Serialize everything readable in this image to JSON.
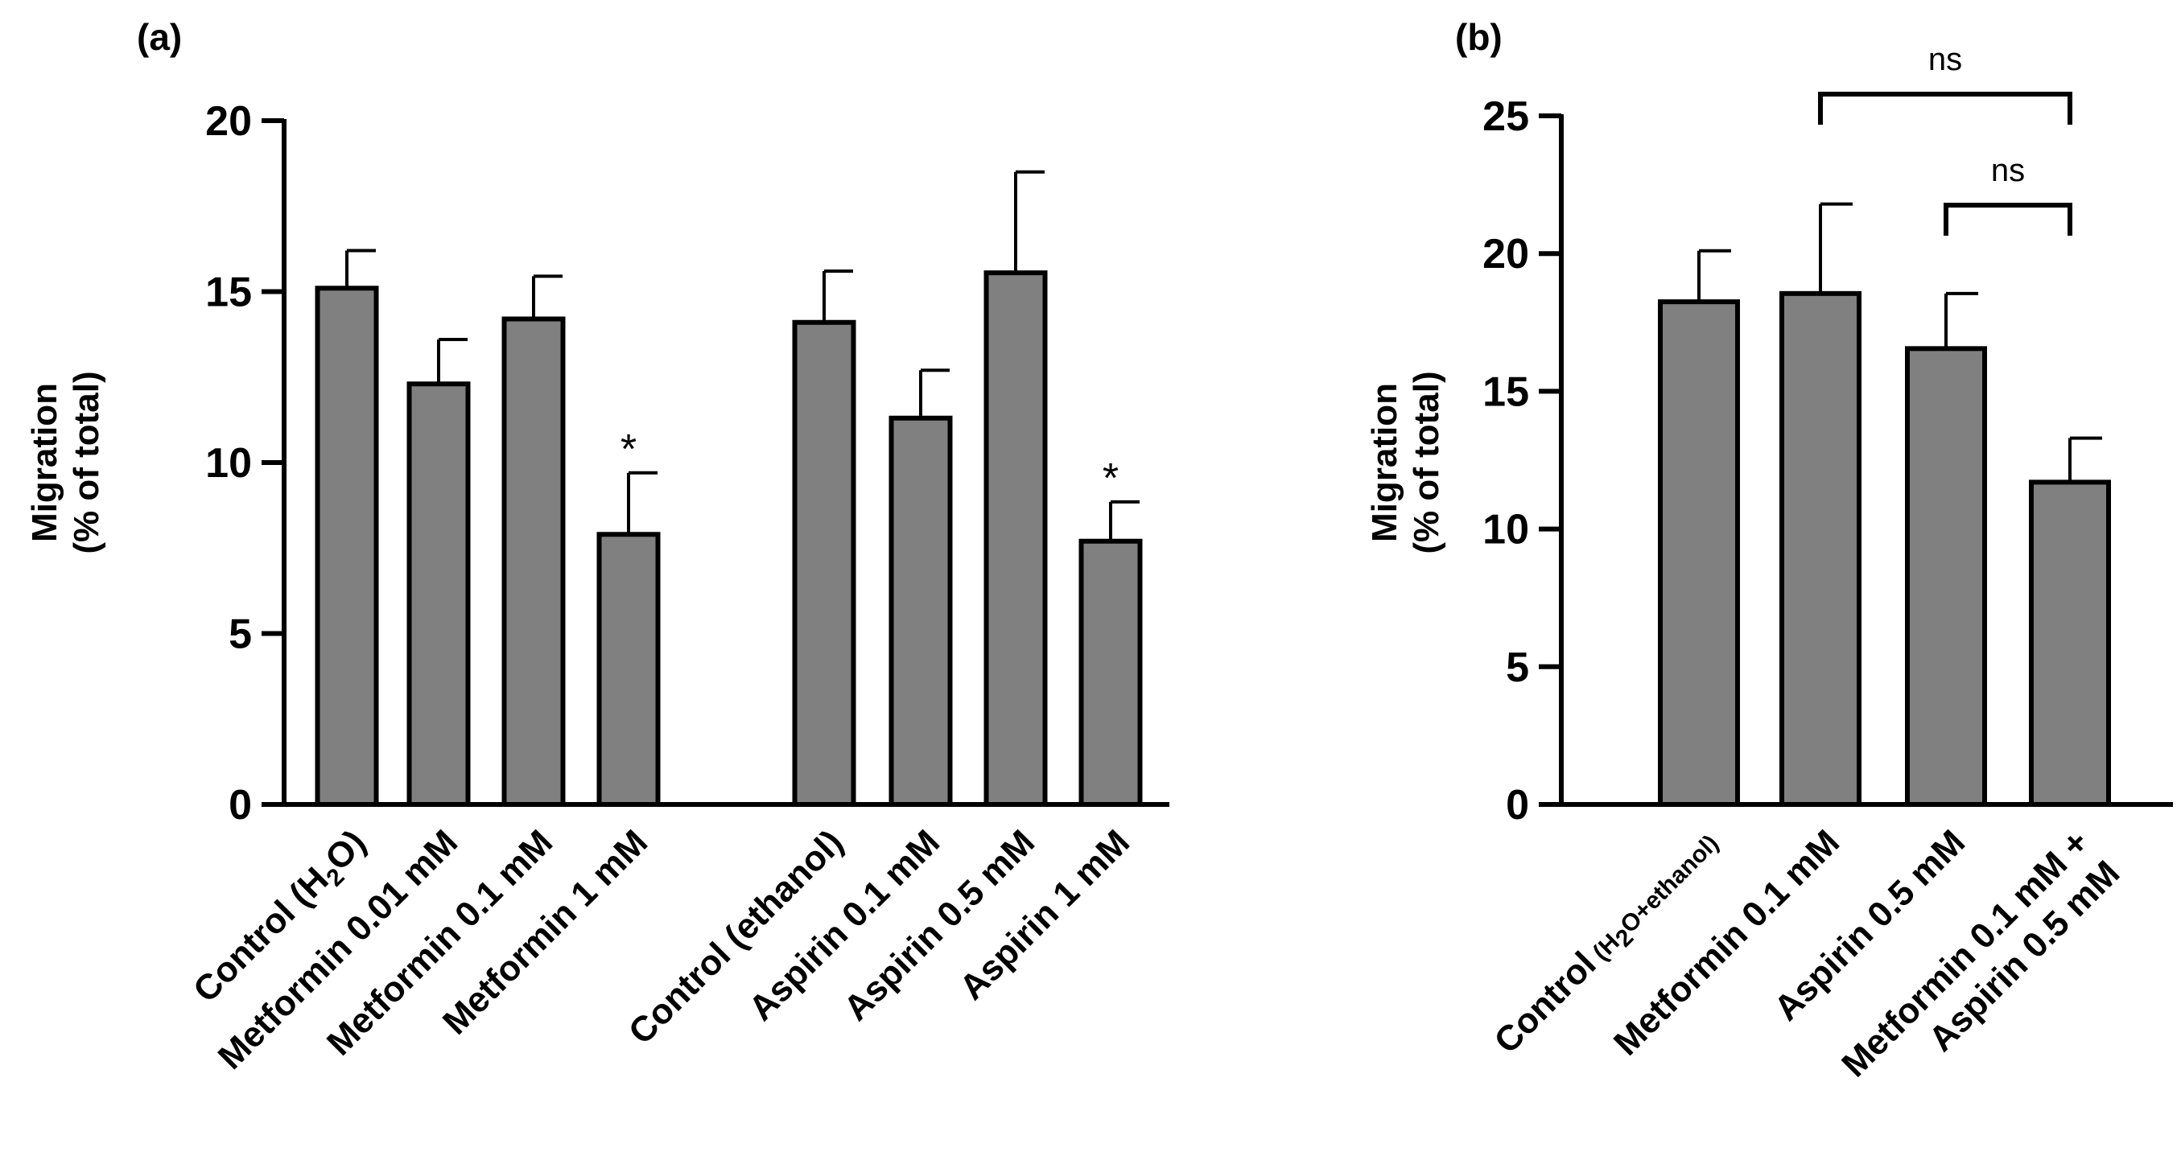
{
  "chart_data": [
    {
      "panel": "(a)",
      "type": "bar",
      "ylabel_line1": "Migration",
      "ylabel_line2": "(% of total)",
      "ylim": [
        0,
        20
      ],
      "yticks": [
        "0",
        "5",
        "10",
        "15",
        "20"
      ],
      "grid": false,
      "bar_color": "#808080",
      "categories": [
        {
          "label": "Control (H",
          "sub": "2",
          "suffix": "O)",
          "value": 15.1,
          "error": 1.1,
          "annotation": ""
        },
        {
          "label": "Metformin 0.01 mM",
          "value": 12.3,
          "error": 1.3,
          "annotation": ""
        },
        {
          "label": "Metformin 0.1 mM",
          "value": 14.2,
          "error": 1.25,
          "annotation": ""
        },
        {
          "label": "Metformin 1 mM",
          "value": 7.9,
          "error": 1.8,
          "annotation": "*"
        },
        {
          "label": "Control (ethanol)",
          "value": 14.1,
          "error": 1.5,
          "annotation": ""
        },
        {
          "label": "Aspirin 0.1 mM",
          "value": 11.3,
          "error": 1.4,
          "annotation": ""
        },
        {
          "label": "Aspirin 0.5 mM",
          "value": 15.55,
          "error": 2.95,
          "annotation": ""
        },
        {
          "label": "Aspirin 1 mM",
          "value": 7.7,
          "error": 1.15,
          "annotation": "*"
        }
      ]
    },
    {
      "panel": "(b)",
      "type": "bar",
      "ylabel_line1": "Migration",
      "ylabel_line2": "(% of total)",
      "ylim": [
        0,
        25
      ],
      "yticks": [
        "0",
        "5",
        "10",
        "15",
        "20",
        "25"
      ],
      "grid": false,
      "bar_color": "#808080",
      "categories": [
        {
          "label": "Control",
          "small": " (H",
          "sub": "2",
          "suffix": "O+ethanol)",
          "value": 18.25,
          "error": 1.85
        },
        {
          "label": "Metformin 0.1 mM",
          "value": 18.55,
          "error": 3.25
        },
        {
          "label": "Aspirin 0.5 mM",
          "value": 16.55,
          "error": 2.0
        },
        {
          "label": "Metformin 0.1 mM +",
          "label2": "Aspirin 0.5 mM",
          "value": 11.7,
          "error": 1.6
        }
      ],
      "comparisons": [
        {
          "from": 1,
          "to": 3,
          "label": "ns"
        },
        {
          "from": 2,
          "to": 3,
          "label": "ns"
        }
      ]
    }
  ]
}
